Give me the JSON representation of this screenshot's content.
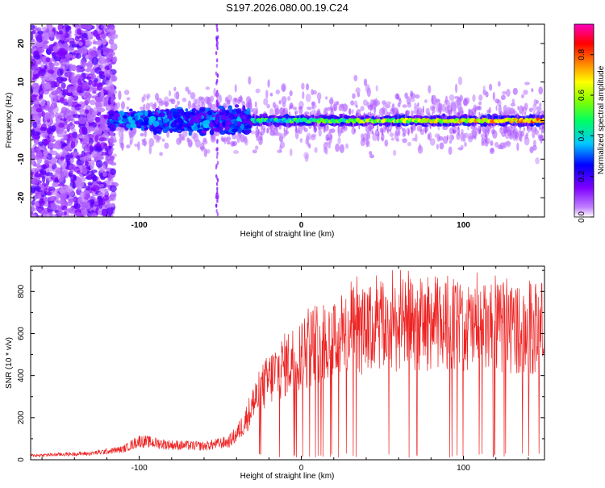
{
  "title": "S197.2026.080.00.19.C24",
  "chart_data": [
    {
      "type": "heatmap",
      "title": "S197.2026.080.00.19.C24",
      "xlabel": "Height of straight line (km)",
      "ylabel": "Frequency (Hz)",
      "xlim": [
        -167,
        150
      ],
      "ylim": [
        -25,
        25
      ],
      "xticks": [
        -100,
        0,
        100
      ],
      "yticks": [
        -20,
        -10,
        0,
        10,
        20
      ],
      "colorbar": {
        "label": "Normalized spectral amplitude",
        "ticks": [
          0.0,
          0.2,
          0.4,
          0.6,
          0.8
        ],
        "range": [
          0,
          0.95
        ],
        "colormap": [
          "#ffffff",
          "#8000ff",
          "#0000ff",
          "#00c0ff",
          "#00ff80",
          "#80ff00",
          "#ffff00",
          "#ff8000",
          "#ff0000",
          "#ff00c0"
        ]
      },
      "description_regions": [
        {
          "x": [
            -167,
            -118
          ],
          "freq": [
            -25,
            25
          ],
          "amplitude": 0.07
        },
        {
          "x": [
            -115,
            -35
          ],
          "freq": [
            -6,
            6
          ],
          "amplitude": 0.25
        },
        {
          "x": [
            -30,
            150
          ],
          "freq": [
            -1,
            1
          ],
          "amplitude": 0.6
        }
      ]
    },
    {
      "type": "line",
      "xlabel": "Height of straight line (km)",
      "ylabel": "SNR (10 * v/v)",
      "xlim": [
        -167,
        150
      ],
      "ylim": [
        0,
        920
      ],
      "xticks": [
        -100,
        0,
        100
      ],
      "yticks": [
        0,
        200,
        400,
        600,
        800
      ],
      "color": "#ee2222",
      "x": [
        -167,
        -150,
        -130,
        -110,
        -100,
        -80,
        -60,
        -45,
        -40,
        -35,
        -30,
        -25,
        -20,
        -15,
        -10,
        -5,
        0,
        10,
        20,
        30,
        40,
        50,
        60,
        70,
        80,
        90,
        100,
        110,
        120,
        130,
        140,
        150
      ],
      "y": [
        20,
        25,
        30,
        50,
        90,
        70,
        65,
        85,
        120,
        180,
        260,
        330,
        380,
        420,
        450,
        480,
        500,
        560,
        580,
        600,
        610,
        630,
        640,
        640,
        650,
        640,
        630,
        620,
        620,
        630,
        610,
        640
      ]
    }
  ]
}
